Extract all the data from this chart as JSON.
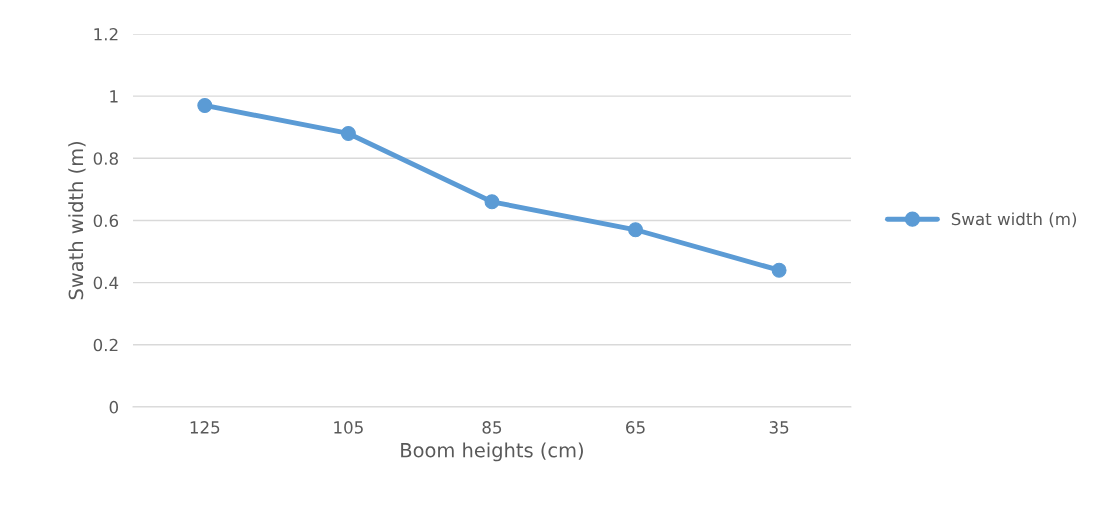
{
  "chart_data": {
    "type": "line",
    "xlabel": "Boom heights (cm)",
    "ylabel": "Swath width (m)",
    "categories": [
      "125",
      "105",
      "85",
      "65",
      "35"
    ],
    "series": [
      {
        "name": "Swat width (m)",
        "color": "#5b9bd5",
        "values": [
          0.97,
          0.88,
          0.66,
          0.57,
          0.44
        ]
      }
    ],
    "ylim": [
      0,
      1.2
    ],
    "yticks": [
      0,
      0.2,
      0.4,
      0.6,
      0.8,
      1,
      1.2
    ],
    "grid": "y",
    "legend": "right",
    "marker": "circle",
    "line_style": "solid"
  }
}
